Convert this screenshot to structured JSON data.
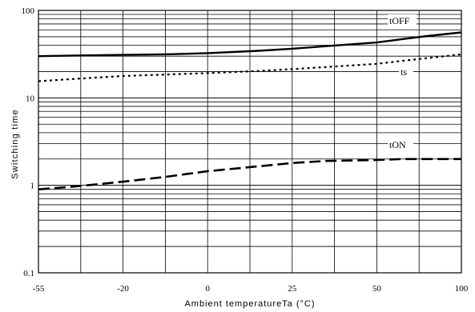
{
  "chart_data": {
    "type": "line",
    "xlabel": "Ambient temperatureTa (°C)",
    "ylabel": "Switching time",
    "x_ticks": [
      "-55",
      "-20",
      "0",
      "25",
      "50",
      "100"
    ],
    "y_ticks": [
      "100",
      "10",
      "1",
      "0.1"
    ],
    "xlim": [
      -55,
      100
    ],
    "ylim": [
      0.1,
      100
    ],
    "y_scale": "log",
    "grid": true,
    "series": [
      {
        "name": "tOFF",
        "style": "solid",
        "x": [
          -55,
          -40,
          -20,
          -10,
          0,
          15,
          25,
          35,
          50,
          65,
          80,
          100
        ],
        "y": [
          30,
          30.5,
          31,
          31.5,
          32.5,
          34.5,
          36.5,
          39,
          43,
          47,
          51,
          56
        ]
      },
      {
        "name": "ts",
        "style": "dotted",
        "x": [
          -55,
          -40,
          -20,
          0,
          15,
          25,
          35,
          50,
          65,
          80,
          100
        ],
        "y": [
          15.5,
          16.5,
          17.8,
          19.2,
          20.3,
          21.3,
          22.5,
          24.5,
          26.5,
          28.5,
          31.5
        ]
      },
      {
        "name": "tON",
        "style": "dashed",
        "x": [
          -55,
          -40,
          -20,
          -10,
          0,
          15,
          25,
          35,
          50,
          65,
          80,
          100
        ],
        "y": [
          0.9,
          0.97,
          1.1,
          1.25,
          1.45,
          1.65,
          1.8,
          1.9,
          1.95,
          2.0,
          2.0,
          2.0
        ]
      }
    ]
  }
}
